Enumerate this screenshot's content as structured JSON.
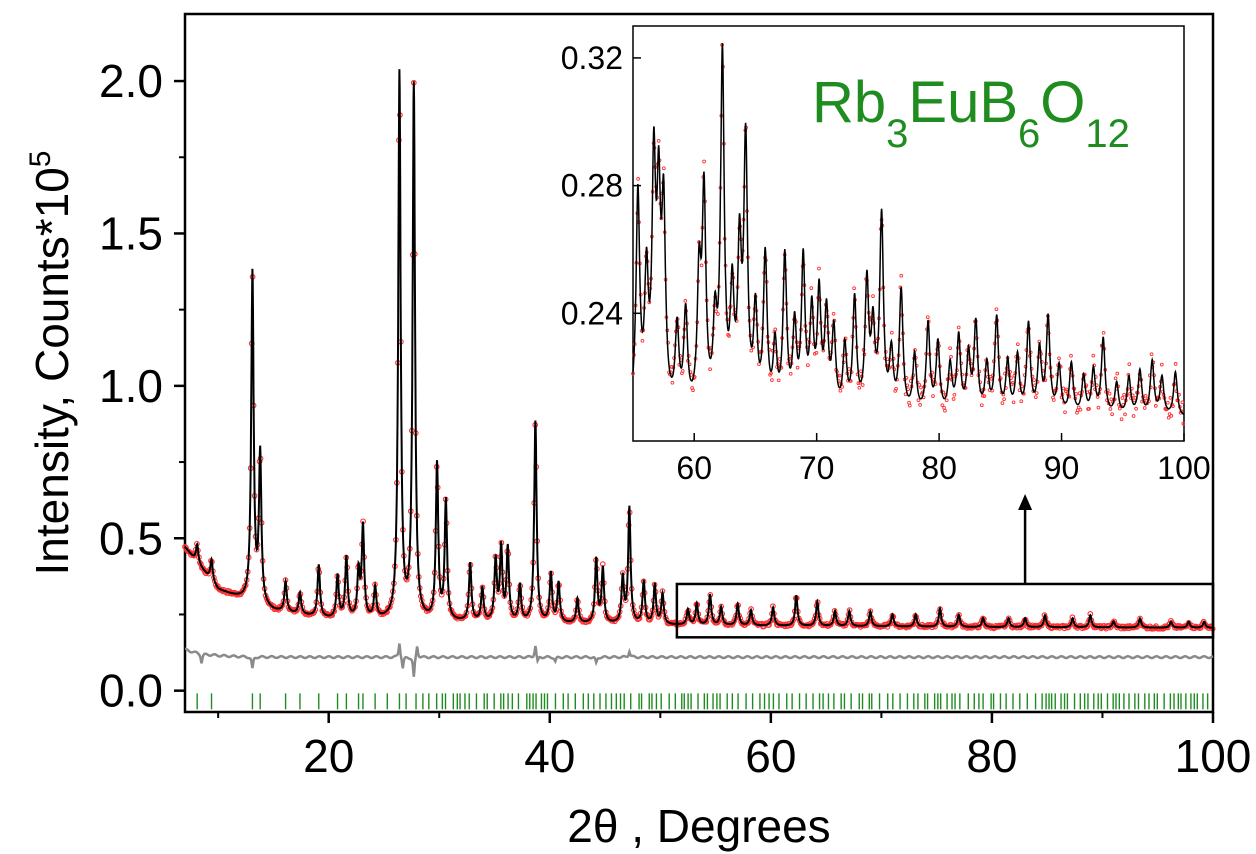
{
  "chart_data": {
    "type": "line",
    "title": "",
    "compound": {
      "base": "Rb",
      "sub1": "3",
      "mid1": "EuB",
      "sub2": "6",
      "mid2": "O",
      "sub3": "12",
      "color": "#1e8c1e"
    },
    "xlabel": "2θ , Degrees",
    "ylabel": {
      "main": "Intensity, Counts*10",
      "sup": "5"
    },
    "xlim": [
      7,
      100
    ],
    "ylim": [
      -0.07,
      2.22
    ],
    "xticks": [
      20,
      40,
      60,
      80,
      100
    ],
    "xtick_labels": [
      "20",
      "40",
      "60",
      "80",
      "100"
    ],
    "yticks": [
      0.0,
      0.5,
      1.0,
      1.5,
      2.0
    ],
    "ytick_labels": [
      "0.0",
      "0.5",
      "1.0",
      "1.5",
      "2.0"
    ],
    "colors": {
      "observed": "#ff3030",
      "calculated": "#000000",
      "difference": "#8a8a8a",
      "bragg": "#1e8c1e"
    },
    "background": {
      "x": [
        7,
        10,
        15,
        20,
        30,
        40,
        50,
        60,
        70,
        80,
        90,
        100
      ],
      "y": [
        0.47,
        0.33,
        0.26,
        0.235,
        0.225,
        0.22,
        0.215,
        0.212,
        0.21,
        0.208,
        0.207,
        0.206
      ]
    },
    "peaks": [
      {
        "x": 8.1,
        "h": 0.06
      },
      {
        "x": 9.4,
        "h": 0.07
      },
      {
        "x": 13.1,
        "h": 1.08
      },
      {
        "x": 13.8,
        "h": 0.49
      },
      {
        "x": 16.1,
        "h": 0.1
      },
      {
        "x": 17.4,
        "h": 0.07
      },
      {
        "x": 19.1,
        "h": 0.17
      },
      {
        "x": 20.8,
        "h": 0.14
      },
      {
        "x": 21.6,
        "h": 0.2
      },
      {
        "x": 22.7,
        "h": 0.15
      },
      {
        "x": 23.1,
        "h": 0.3
      },
      {
        "x": 24.2,
        "h": 0.1
      },
      {
        "x": 26.4,
        "h": 1.79
      },
      {
        "x": 27.7,
        "h": 1.75
      },
      {
        "x": 29.8,
        "h": 0.51
      },
      {
        "x": 30.6,
        "h": 0.39
      },
      {
        "x": 32.8,
        "h": 0.19
      },
      {
        "x": 33.9,
        "h": 0.11
      },
      {
        "x": 35.1,
        "h": 0.2
      },
      {
        "x": 35.6,
        "h": 0.24
      },
      {
        "x": 36.2,
        "h": 0.24
      },
      {
        "x": 37.3,
        "h": 0.12
      },
      {
        "x": 38.7,
        "h": 0.66
      },
      {
        "x": 40.1,
        "h": 0.16
      },
      {
        "x": 40.8,
        "h": 0.13
      },
      {
        "x": 42.5,
        "h": 0.08
      },
      {
        "x": 44.2,
        "h": 0.21
      },
      {
        "x": 44.8,
        "h": 0.18
      },
      {
        "x": 46.6,
        "h": 0.15
      },
      {
        "x": 47.2,
        "h": 0.38
      },
      {
        "x": 48.5,
        "h": 0.14
      },
      {
        "x": 49.5,
        "h": 0.13
      },
      {
        "x": 50.2,
        "h": 0.1
      },
      {
        "x": 52.5,
        "h": 0.05
      },
      {
        "x": 53.3,
        "h": 0.07
      },
      {
        "x": 54.5,
        "h": 0.1
      },
      {
        "x": 55.5,
        "h": 0.06
      },
      {
        "x": 57.0,
        "h": 0.07
      },
      {
        "x": 58.2,
        "h": 0.05
      },
      {
        "x": 60.2,
        "h": 0.06
      },
      {
        "x": 62.3,
        "h": 0.1
      },
      {
        "x": 64.2,
        "h": 0.08
      },
      {
        "x": 65.8,
        "h": 0.05
      },
      {
        "x": 67.1,
        "h": 0.05
      },
      {
        "x": 69.0,
        "h": 0.05
      },
      {
        "x": 71.0,
        "h": 0.04
      },
      {
        "x": 73.1,
        "h": 0.04
      },
      {
        "x": 75.3,
        "h": 0.06
      },
      {
        "x": 77.0,
        "h": 0.04
      },
      {
        "x": 79.2,
        "h": 0.03
      },
      {
        "x": 81.5,
        "h": 0.03
      },
      {
        "x": 83.0,
        "h": 0.03
      },
      {
        "x": 84.8,
        "h": 0.04
      },
      {
        "x": 87.3,
        "h": 0.03
      },
      {
        "x": 88.9,
        "h": 0.04
      },
      {
        "x": 91.0,
        "h": 0.02
      },
      {
        "x": 93.4,
        "h": 0.03
      },
      {
        "x": 96.2,
        "h": 0.02
      },
      {
        "x": 97.8,
        "h": 0.02
      },
      {
        "x": 99.2,
        "h": 0.02
      }
    ],
    "difference_baseline": 0.11,
    "difference_spikes": [
      {
        "x": 8.5,
        "d": -0.03
      },
      {
        "x": 13.1,
        "d": -0.04
      },
      {
        "x": 26.4,
        "d": 0.05
      },
      {
        "x": 26.7,
        "d": -0.04
      },
      {
        "x": 27.7,
        "d": -0.07
      },
      {
        "x": 28.0,
        "d": 0.04
      },
      {
        "x": 38.7,
        "d": 0.04
      },
      {
        "x": 38.9,
        "d": -0.02
      },
      {
        "x": 40.5,
        "d": -0.015
      },
      {
        "x": 44.2,
        "d": -0.02
      },
      {
        "x": 47.2,
        "d": 0.02
      }
    ],
    "bragg_marks": {
      "y": -0.035,
      "dense_from": 27.5,
      "sparse_positions": [
        8.1,
        9.4,
        13.1,
        13.8,
        16.1,
        17.4,
        19.1,
        20.8,
        21.6,
        22.7,
        23.1,
        24.2,
        25.3,
        26.4,
        27.0
      ]
    },
    "zoom_box": {
      "x": [
        51.5,
        100
      ],
      "y": [
        0.175,
        0.35
      ]
    },
    "inset": {
      "xlim": [
        55,
        100
      ],
      "ylim": [
        0.2,
        0.33
      ],
      "xticks": [
        60,
        70,
        80,
        90,
        100
      ],
      "xtick_labels": [
        "60",
        "70",
        "80",
        "90",
        "100"
      ],
      "yticks": [
        0.24,
        0.28,
        0.32
      ],
      "ytick_labels": [
        "0.24",
        "0.28",
        "0.32"
      ],
      "background": 0.207,
      "peaks": [
        {
          "x": 55.4,
          "h": 0.068
        },
        {
          "x": 56.1,
          "h": 0.04
        },
        {
          "x": 56.7,
          "h": 0.073
        },
        {
          "x": 57.1,
          "h": 0.06
        },
        {
          "x": 57.5,
          "h": 0.06
        },
        {
          "x": 58.6,
          "h": 0.025
        },
        {
          "x": 59.3,
          "h": 0.03
        },
        {
          "x": 60.4,
          "h": 0.04
        },
        {
          "x": 60.8,
          "h": 0.066
        },
        {
          "x": 61.7,
          "h": 0.025
        },
        {
          "x": 62.3,
          "h": 0.11
        },
        {
          "x": 63.1,
          "h": 0.035
        },
        {
          "x": 63.7,
          "h": 0.048
        },
        {
          "x": 64.2,
          "h": 0.082
        },
        {
          "x": 65.0,
          "h": 0.03
        },
        {
          "x": 65.8,
          "h": 0.048
        },
        {
          "x": 66.6,
          "h": 0.02
        },
        {
          "x": 67.4,
          "h": 0.048
        },
        {
          "x": 68.2,
          "h": 0.026
        },
        {
          "x": 68.9,
          "h": 0.047
        },
        {
          "x": 69.6,
          "h": 0.03
        },
        {
          "x": 70.2,
          "h": 0.036
        },
        {
          "x": 70.8,
          "h": 0.03
        },
        {
          "x": 71.4,
          "h": 0.025
        },
        {
          "x": 72.3,
          "h": 0.02
        },
        {
          "x": 73.1,
          "h": 0.035
        },
        {
          "x": 74.1,
          "h": 0.04
        },
        {
          "x": 74.6,
          "h": 0.025
        },
        {
          "x": 75.3,
          "h": 0.061
        },
        {
          "x": 76.1,
          "h": 0.018
        },
        {
          "x": 76.9,
          "h": 0.038
        },
        {
          "x": 78.0,
          "h": 0.018
        },
        {
          "x": 79.1,
          "h": 0.028
        },
        {
          "x": 79.9,
          "h": 0.022
        },
        {
          "x": 80.9,
          "h": 0.015
        },
        {
          "x": 81.6,
          "h": 0.024
        },
        {
          "x": 82.4,
          "h": 0.018
        },
        {
          "x": 83.0,
          "h": 0.028
        },
        {
          "x": 83.9,
          "h": 0.015
        },
        {
          "x": 84.7,
          "h": 0.03
        },
        {
          "x": 85.6,
          "h": 0.016
        },
        {
          "x": 86.4,
          "h": 0.018
        },
        {
          "x": 87.3,
          "h": 0.028
        },
        {
          "x": 88.2,
          "h": 0.02
        },
        {
          "x": 88.9,
          "h": 0.03
        },
        {
          "x": 89.8,
          "h": 0.015
        },
        {
          "x": 90.8,
          "h": 0.016
        },
        {
          "x": 91.8,
          "h": 0.012
        },
        {
          "x": 92.6,
          "h": 0.014
        },
        {
          "x": 93.4,
          "h": 0.024
        },
        {
          "x": 94.5,
          "h": 0.01
        },
        {
          "x": 95.5,
          "h": 0.012
        },
        {
          "x": 96.4,
          "h": 0.014
        },
        {
          "x": 97.4,
          "h": 0.017
        },
        {
          "x": 98.2,
          "h": 0.012
        },
        {
          "x": 99.3,
          "h": 0.014
        }
      ]
    }
  }
}
